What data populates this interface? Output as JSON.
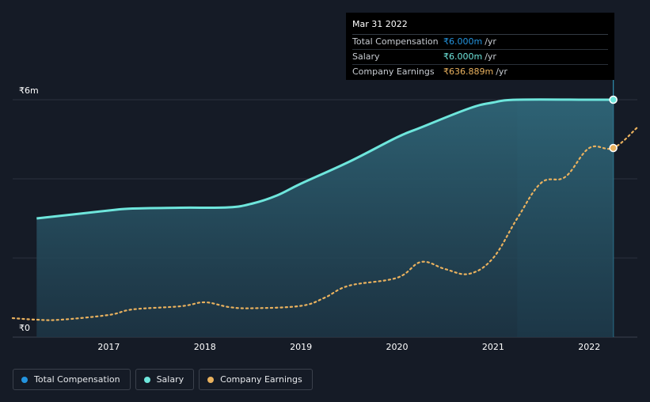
{
  "chart_data": {
    "type": "area",
    "y_axis": {
      "tick_labels": [
        "₹6m",
        "₹0"
      ],
      "ylim": [
        0,
        6000000
      ]
    },
    "x_axis": {
      "tick_labels": [
        "2017",
        "2018",
        "2019",
        "2020",
        "2021",
        "2022"
      ],
      "tick_values": [
        2017,
        2018,
        2019,
        2020,
        2021,
        2022
      ],
      "xlim": [
        2016.0,
        2022.5
      ]
    },
    "grid": true,
    "series": [
      {
        "name": "Total Compensation",
        "color": "#2394df",
        "x": [
          2016.25,
          2017.0,
          2017.25,
          2017.75,
          2018.25,
          2018.5,
          2018.75,
          2019.0,
          2019.5,
          2020.0,
          2020.25,
          2020.75,
          2021.0,
          2021.25,
          2022.0,
          2022.25
        ],
        "values": [
          3000000,
          3200000,
          3250000,
          3270000,
          3280000,
          3380000,
          3580000,
          3880000,
          4430000,
          5050000,
          5300000,
          5780000,
          5930000,
          6000000,
          6000000,
          6000000
        ]
      },
      {
        "name": "Salary",
        "color": "#6ee6dc",
        "x": [
          2016.25,
          2017.0,
          2017.25,
          2017.75,
          2018.25,
          2018.5,
          2018.75,
          2019.0,
          2019.5,
          2020.0,
          2020.25,
          2020.75,
          2021.0,
          2021.25,
          2022.0,
          2022.25
        ],
        "values": [
          3000000,
          3200000,
          3250000,
          3270000,
          3280000,
          3380000,
          3580000,
          3880000,
          4430000,
          5050000,
          5300000,
          5780000,
          5930000,
          6000000,
          6000000,
          6000000
        ]
      },
      {
        "name": "Company Earnings",
        "color": "#e9b15e",
        "x": [
          2016.0,
          2016.25,
          2016.5,
          2017.0,
          2017.25,
          2017.75,
          2018.0,
          2018.25,
          2018.5,
          2019.0,
          2019.25,
          2019.5,
          2020.0,
          2020.25,
          2020.5,
          2020.75,
          2021.0,
          2021.25,
          2021.5,
          2021.75,
          2022.0,
          2022.25,
          2022.5
        ],
        "values": [
          480000,
          440000,
          440000,
          560000,
          700000,
          780000,
          880000,
          760000,
          730000,
          790000,
          1000000,
          1300000,
          1500000,
          1900000,
          1720000,
          1600000,
          2000000,
          3000000,
          3900000,
          4050000,
          4780000,
          4780000,
          5300000
        ]
      }
    ],
    "forecast_region_start": 2021.25,
    "tooltip": {
      "date": "Mar 31 2022",
      "rows": [
        {
          "label": "Total Compensation",
          "value": "₹6.000m",
          "unit": "/yr",
          "color": "#2394df"
        },
        {
          "label": "Salary",
          "value": "₹6.000m",
          "unit": "/yr",
          "color": "#6ee6dc"
        },
        {
          "label": "Company Earnings",
          "value": "₹636.889m",
          "unit": "/yr",
          "color": "#e9b15e"
        }
      ]
    },
    "legend": [
      {
        "label": "Total Compensation",
        "color": "#2394df"
      },
      {
        "label": "Salary",
        "color": "#6ee6dc"
      },
      {
        "label": "Company Earnings",
        "color": "#e9b15e"
      }
    ]
  }
}
